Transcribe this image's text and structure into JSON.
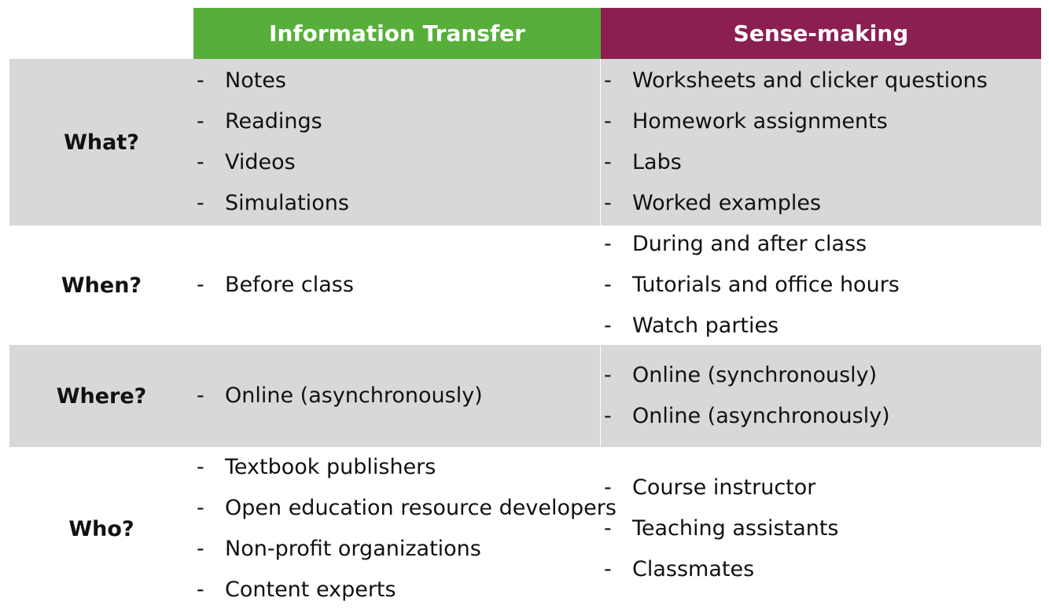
{
  "headers": {
    "information_transfer": "Information Transfer",
    "sense_making": "Sense-making"
  },
  "colors": {
    "information_transfer_header": "#57ae3b",
    "sense_making_header": "#8b1f52",
    "gray_row": "#d8d8d8"
  },
  "rows": [
    {
      "label": "What?",
      "information_transfer": [
        "Notes",
        "Readings",
        "Videos",
        "Simulations"
      ],
      "sense_making": [
        "Worksheets and clicker questions",
        "Homework assignments",
        "Labs",
        "Worked examples"
      ]
    },
    {
      "label": "When?",
      "information_transfer": [
        "Before class"
      ],
      "sense_making": [
        "During and after class",
        "Tutorials and office hours",
        "Watch parties"
      ]
    },
    {
      "label": "Where?",
      "information_transfer": [
        "Online (asynchronously)"
      ],
      "sense_making": [
        "Online (synchronously)",
        "Online (asynchronously)"
      ]
    },
    {
      "label": "Who?",
      "information_transfer": [
        "Textbook publishers",
        "Open education resource developers",
        "Non-profit organizations",
        "Content experts"
      ],
      "sense_making": [
        "Course instructor",
        "Teaching assistants",
        "Classmates"
      ]
    }
  ]
}
